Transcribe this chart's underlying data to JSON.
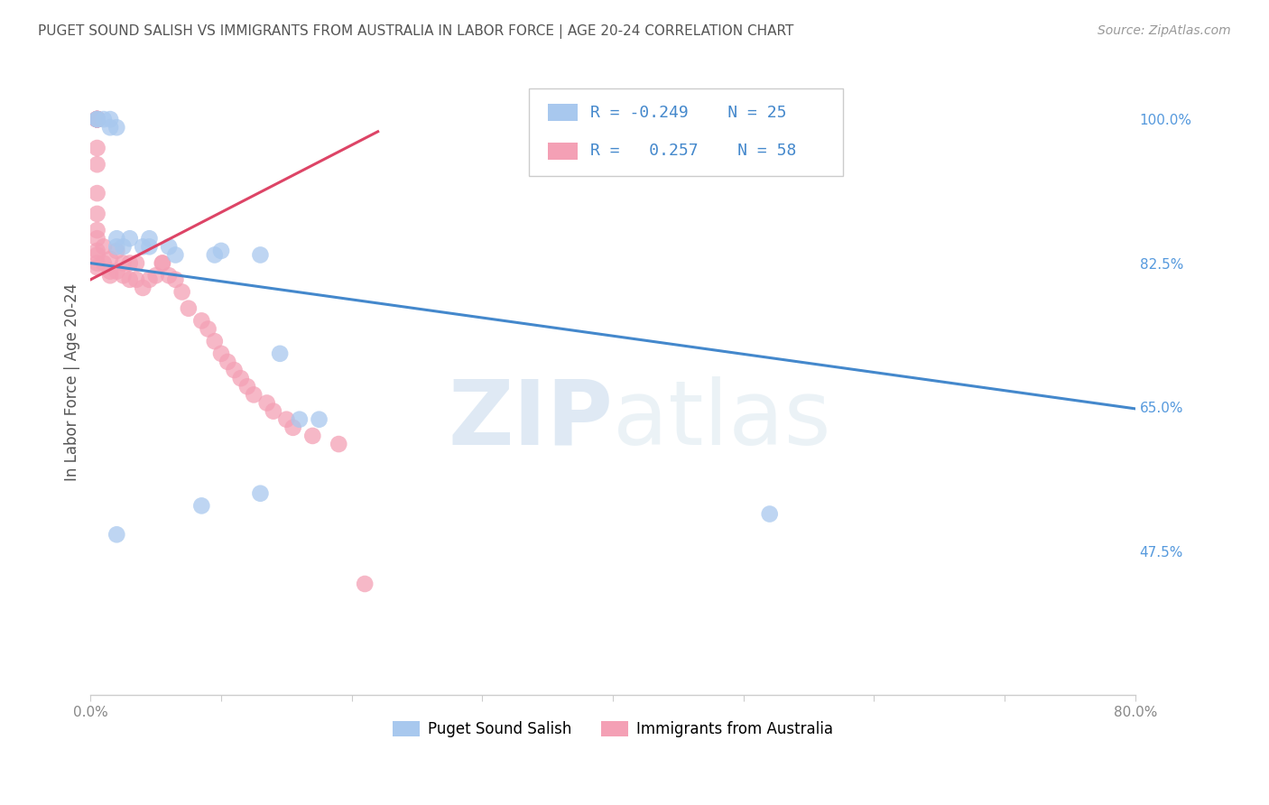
{
  "title": "PUGET SOUND SALISH VS IMMIGRANTS FROM AUSTRALIA IN LABOR FORCE | AGE 20-24 CORRELATION CHART",
  "source": "Source: ZipAtlas.com",
  "ylabel": "In Labor Force | Age 20-24",
  "xlim": [
    0.0,
    0.8
  ],
  "ylim": [
    0.3,
    1.06
  ],
  "xticks": [
    0.0,
    0.1,
    0.2,
    0.3,
    0.4,
    0.5,
    0.6,
    0.7,
    0.8
  ],
  "xticklabels": [
    "0.0%",
    "",
    "",
    "",
    "",
    "",
    "",
    "",
    "80.0%"
  ],
  "yticks_right": [
    0.475,
    0.65,
    0.825,
    1.0
  ],
  "yticklabels_right": [
    "47.5%",
    "65.0%",
    "82.5%",
    "100.0%"
  ],
  "blue_R": "-0.249",
  "blue_N": "25",
  "pink_R": "0.257",
  "pink_N": "58",
  "blue_scatter_x": [
    0.005,
    0.005,
    0.01,
    0.015,
    0.015,
    0.02,
    0.02,
    0.02,
    0.025,
    0.03,
    0.04,
    0.045,
    0.045,
    0.06,
    0.065,
    0.095,
    0.1,
    0.13,
    0.145,
    0.16,
    0.175,
    0.13,
    0.085,
    0.52,
    0.02
  ],
  "blue_scatter_y": [
    1.0,
    1.0,
    1.0,
    1.0,
    0.99,
    0.99,
    0.855,
    0.845,
    0.845,
    0.855,
    0.845,
    0.845,
    0.855,
    0.845,
    0.835,
    0.835,
    0.84,
    0.835,
    0.715,
    0.635,
    0.635,
    0.545,
    0.53,
    0.52,
    0.495
  ],
  "pink_scatter_x": [
    0.005,
    0.005,
    0.005,
    0.005,
    0.005,
    0.005,
    0.005,
    0.005,
    0.005,
    0.005,
    0.005,
    0.005,
    0.005,
    0.005,
    0.005,
    0.005,
    0.005,
    0.005,
    0.005,
    0.005,
    0.01,
    0.01,
    0.015,
    0.015,
    0.015,
    0.02,
    0.02,
    0.025,
    0.025,
    0.03,
    0.03,
    0.035,
    0.035,
    0.04,
    0.045,
    0.05,
    0.055,
    0.055,
    0.06,
    0.065,
    0.07,
    0.075,
    0.085,
    0.09,
    0.095,
    0.1,
    0.105,
    0.11,
    0.115,
    0.12,
    0.125,
    0.135,
    0.14,
    0.15,
    0.155,
    0.17,
    0.19,
    0.21
  ],
  "pink_scatter_y": [
    1.0,
    1.0,
    1.0,
    1.0,
    1.0,
    1.0,
    1.0,
    1.0,
    1.0,
    1.0,
    0.965,
    0.945,
    0.91,
    0.885,
    0.865,
    0.855,
    0.84,
    0.835,
    0.825,
    0.82,
    0.845,
    0.825,
    0.83,
    0.815,
    0.81,
    0.84,
    0.815,
    0.825,
    0.81,
    0.825,
    0.805,
    0.825,
    0.805,
    0.795,
    0.805,
    0.81,
    0.825,
    0.825,
    0.81,
    0.805,
    0.79,
    0.77,
    0.755,
    0.745,
    0.73,
    0.715,
    0.705,
    0.695,
    0.685,
    0.675,
    0.665,
    0.655,
    0.645,
    0.635,
    0.625,
    0.615,
    0.605,
    0.435
  ],
  "blue_line_x": [
    0.0,
    0.8
  ],
  "blue_line_y": [
    0.825,
    0.648
  ],
  "pink_line_x": [
    0.0,
    0.22
  ],
  "pink_line_y": [
    0.805,
    0.985
  ],
  "blue_color": "#a8c8ee",
  "pink_color": "#f4a0b5",
  "blue_line_color": "#4488cc",
  "pink_line_color": "#dd4466",
  "legend_label_blue": "Puget Sound Salish",
  "legend_label_pink": "Immigrants from Australia",
  "watermark_zip": "ZIP",
  "watermark_atlas": "atlas",
  "grid_color": "#cccccc",
  "background_color": "#ffffff",
  "title_color": "#555555",
  "right_tick_color": "#5599dd"
}
